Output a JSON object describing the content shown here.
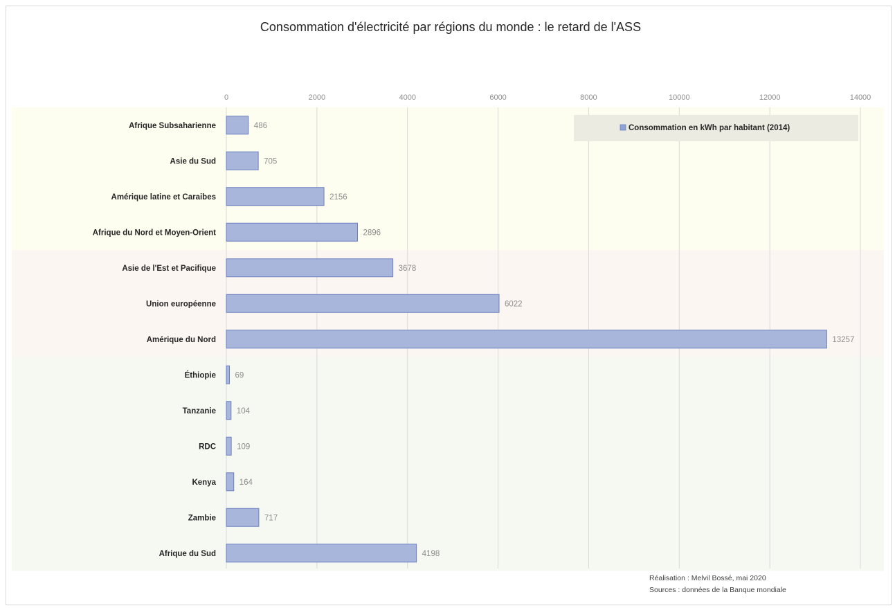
{
  "chart_data": {
    "type": "bar",
    "orientation": "horizontal",
    "title": "Consommation d'électricité par régions du monde : le retard de l'ASS",
    "xlabel": "",
    "ylabel": "",
    "xlim": [
      0,
      14000
    ],
    "xticks": [
      0,
      2000,
      4000,
      6000,
      8000,
      10000,
      12000,
      14000
    ],
    "x_axis_position": "top",
    "grid": true,
    "legend_position": "top-right",
    "categories": [
      "Afrique Subsaharienne",
      "Asie du Sud",
      "Amérique latine et Caraibes",
      "Afrique du Nord et Moyen-Orient",
      "Asie de l'Est et Pacifique",
      "Union européenne",
      "Amérique du Nord",
      "Éthiopie",
      "Tanzanie",
      "RDC",
      "Kenya",
      "Zambie",
      "Afrique du Sud"
    ],
    "series": [
      {
        "name": "Consommation en kWh par habitant (2014)",
        "values": [
          486,
          705,
          2156,
          2896,
          3678,
          6022,
          13257,
          69,
          104,
          109,
          164,
          717,
          4198
        ],
        "data_labels": [
          "486",
          "705",
          "2156",
          "2896",
          "3678",
          "6022",
          "13257",
          "69",
          "104",
          "109",
          "164",
          "717",
          "4198"
        ],
        "color": "#a9b6dc"
      }
    ],
    "groups": [
      {
        "categories": [
          0,
          1,
          2,
          3
        ],
        "background": "#fdfdf0"
      },
      {
        "categories": [
          4,
          5,
          6
        ],
        "background": "#fcf6f3"
      },
      {
        "categories": [
          7,
          8,
          9,
          10,
          11,
          12
        ],
        "background": "#f6f8f2"
      }
    ]
  },
  "credits": {
    "line1": "Réalisation : Melvil Bossé, mai 2020",
    "line2": "Sources : données de la Banque mondiale"
  },
  "colors": {
    "bar_fill": "#a9b6dc",
    "bar_stroke": "#6a7fc0",
    "grid": "#d9d9d9",
    "legend_bg": "#ecebe1",
    "legend_swatch": "#8fa3d6"
  }
}
